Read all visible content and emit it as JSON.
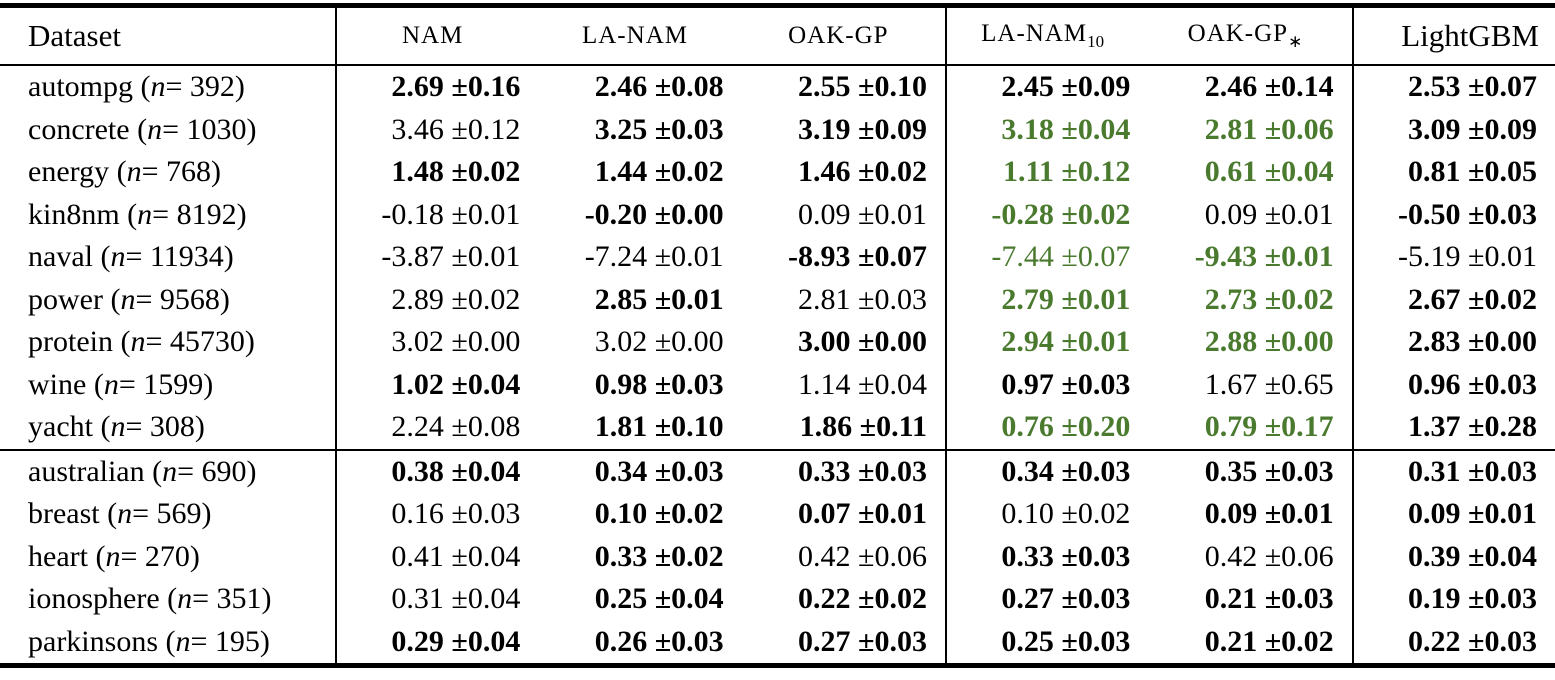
{
  "page": {
    "background": "#ffffff",
    "text_color": "#000000",
    "highlight_color": "#4a7a2e"
  },
  "header": {
    "dataset_label": "Dataset",
    "columns": [
      {
        "label": "NAM",
        "sub": "",
        "style": "smallcaps"
      },
      {
        "label": "LA-NAM",
        "sub": "",
        "style": "smallcaps"
      },
      {
        "label": "OAK-GP",
        "sub": "",
        "style": "smallcaps"
      },
      {
        "label": "LA-NAM",
        "sub": "10",
        "style": "smallcaps"
      },
      {
        "label": "OAK-GP",
        "sub": "∗",
        "style": "smallcaps"
      },
      {
        "label": "LightGBM",
        "sub": "",
        "style": "serif"
      }
    ]
  },
  "sections": [
    {
      "rows": [
        {
          "dataset": "autompg",
          "n": "392",
          "cells": [
            {
              "value": "2.69",
              "err": "0.16",
              "bold": true,
              "green": false
            },
            {
              "value": "2.46",
              "err": "0.08",
              "bold": true,
              "green": false
            },
            {
              "value": "2.55",
              "err": "0.10",
              "bold": true,
              "green": false
            },
            {
              "value": "2.45",
              "err": "0.09",
              "bold": true,
              "green": false
            },
            {
              "value": "2.46",
              "err": "0.14",
              "bold": true,
              "green": false
            },
            {
              "value": "2.53",
              "err": "0.07",
              "bold": true,
              "green": false
            }
          ]
        },
        {
          "dataset": "concrete",
          "n": "1030",
          "cells": [
            {
              "value": "3.46",
              "err": "0.12",
              "bold": false,
              "green": false
            },
            {
              "value": "3.25",
              "err": "0.03",
              "bold": true,
              "green": false
            },
            {
              "value": "3.19",
              "err": "0.09",
              "bold": true,
              "green": false
            },
            {
              "value": "3.18",
              "err": "0.04",
              "bold": true,
              "green": true
            },
            {
              "value": "2.81",
              "err": "0.06",
              "bold": true,
              "green": true
            },
            {
              "value": "3.09",
              "err": "0.09",
              "bold": true,
              "green": false
            }
          ]
        },
        {
          "dataset": "energy",
          "n": "768",
          "cells": [
            {
              "value": "1.48",
              "err": "0.02",
              "bold": true,
              "green": false
            },
            {
              "value": "1.44",
              "err": "0.02",
              "bold": true,
              "green": false
            },
            {
              "value": "1.46",
              "err": "0.02",
              "bold": true,
              "green": false
            },
            {
              "value": "1.11",
              "err": "0.12",
              "bold": true,
              "green": true
            },
            {
              "value": "0.61",
              "err": "0.04",
              "bold": true,
              "green": true
            },
            {
              "value": "0.81",
              "err": "0.05",
              "bold": true,
              "green": false
            }
          ]
        },
        {
          "dataset": "kin8nm",
          "n": "8192",
          "cells": [
            {
              "value": "-0.18",
              "err": "0.01",
              "bold": false,
              "green": false
            },
            {
              "value": "-0.20",
              "err": "0.00",
              "bold": true,
              "green": false
            },
            {
              "value": "0.09",
              "err": "0.01",
              "bold": false,
              "green": false
            },
            {
              "value": "-0.28",
              "err": "0.02",
              "bold": true,
              "green": true
            },
            {
              "value": "0.09",
              "err": "0.01",
              "bold": false,
              "green": false
            },
            {
              "value": "-0.50",
              "err": "0.03",
              "bold": true,
              "green": false
            }
          ]
        },
        {
          "dataset": "naval",
          "n": "11934",
          "cells": [
            {
              "value": "-3.87",
              "err": "0.01",
              "bold": false,
              "green": false
            },
            {
              "value": "-7.24",
              "err": "0.01",
              "bold": false,
              "green": false
            },
            {
              "value": "-8.93",
              "err": "0.07",
              "bold": true,
              "green": false
            },
            {
              "value": "-7.44",
              "err": "0.07",
              "bold": false,
              "green": true
            },
            {
              "value": "-9.43",
              "err": "0.01",
              "bold": true,
              "green": true
            },
            {
              "value": "-5.19",
              "err": "0.01",
              "bold": false,
              "green": false
            }
          ]
        },
        {
          "dataset": "power",
          "n": "9568",
          "cells": [
            {
              "value": "2.89",
              "err": "0.02",
              "bold": false,
              "green": false
            },
            {
              "value": "2.85",
              "err": "0.01",
              "bold": true,
              "green": false
            },
            {
              "value": "2.81",
              "err": "0.03",
              "bold": false,
              "green": false
            },
            {
              "value": "2.79",
              "err": "0.01",
              "bold": true,
              "green": true
            },
            {
              "value": "2.73",
              "err": "0.02",
              "bold": true,
              "green": true
            },
            {
              "value": "2.67",
              "err": "0.02",
              "bold": true,
              "green": false
            }
          ]
        },
        {
          "dataset": "protein",
          "n": "45730",
          "cells": [
            {
              "value": "3.02",
              "err": "0.00",
              "bold": false,
              "green": false
            },
            {
              "value": "3.02",
              "err": "0.00",
              "bold": false,
              "green": false
            },
            {
              "value": "3.00",
              "err": "0.00",
              "bold": true,
              "green": false
            },
            {
              "value": "2.94",
              "err": "0.01",
              "bold": true,
              "green": true
            },
            {
              "value": "2.88",
              "err": "0.00",
              "bold": true,
              "green": true
            },
            {
              "value": "2.83",
              "err": "0.00",
              "bold": true,
              "green": false
            }
          ]
        },
        {
          "dataset": "wine",
          "n": "1599",
          "cells": [
            {
              "value": "1.02",
              "err": "0.04",
              "bold": true,
              "green": false
            },
            {
              "value": "0.98",
              "err": "0.03",
              "bold": true,
              "green": false
            },
            {
              "value": "1.14",
              "err": "0.04",
              "bold": false,
              "green": false
            },
            {
              "value": "0.97",
              "err": "0.03",
              "bold": true,
              "green": false
            },
            {
              "value": "1.67",
              "err": "0.65",
              "bold": false,
              "green": false
            },
            {
              "value": "0.96",
              "err": "0.03",
              "bold": true,
              "green": false
            }
          ]
        },
        {
          "dataset": "yacht",
          "n": "308",
          "cells": [
            {
              "value": "2.24",
              "err": "0.08",
              "bold": false,
              "green": false
            },
            {
              "value": "1.81",
              "err": "0.10",
              "bold": true,
              "green": false
            },
            {
              "value": "1.86",
              "err": "0.11",
              "bold": true,
              "green": false
            },
            {
              "value": "0.76",
              "err": "0.20",
              "bold": true,
              "green": true
            },
            {
              "value": "0.79",
              "err": "0.17",
              "bold": true,
              "green": true
            },
            {
              "value": "1.37",
              "err": "0.28",
              "bold": true,
              "green": false
            }
          ]
        }
      ]
    },
    {
      "rows": [
        {
          "dataset": "australian",
          "n": "690",
          "cells": [
            {
              "value": "0.38",
              "err": "0.04",
              "bold": true,
              "green": false
            },
            {
              "value": "0.34",
              "err": "0.03",
              "bold": true,
              "green": false
            },
            {
              "value": "0.33",
              "err": "0.03",
              "bold": true,
              "green": false
            },
            {
              "value": "0.34",
              "err": "0.03",
              "bold": true,
              "green": false
            },
            {
              "value": "0.35",
              "err": "0.03",
              "bold": true,
              "green": false
            },
            {
              "value": "0.31",
              "err": "0.03",
              "bold": true,
              "green": false
            }
          ]
        },
        {
          "dataset": "breast",
          "n": "569",
          "cells": [
            {
              "value": "0.16",
              "err": "0.03",
              "bold": false,
              "green": false
            },
            {
              "value": "0.10",
              "err": "0.02",
              "bold": true,
              "green": false
            },
            {
              "value": "0.07",
              "err": "0.01",
              "bold": true,
              "green": false
            },
            {
              "value": "0.10",
              "err": "0.02",
              "bold": false,
              "green": false
            },
            {
              "value": "0.09",
              "err": "0.01",
              "bold": true,
              "green": false
            },
            {
              "value": "0.09",
              "err": "0.01",
              "bold": true,
              "green": false
            }
          ]
        },
        {
          "dataset": "heart",
          "n": "270",
          "cells": [
            {
              "value": "0.41",
              "err": "0.04",
              "bold": false,
              "green": false
            },
            {
              "value": "0.33",
              "err": "0.02",
              "bold": true,
              "green": false
            },
            {
              "value": "0.42",
              "err": "0.06",
              "bold": false,
              "green": false
            },
            {
              "value": "0.33",
              "err": "0.03",
              "bold": true,
              "green": false
            },
            {
              "value": "0.42",
              "err": "0.06",
              "bold": false,
              "green": false
            },
            {
              "value": "0.39",
              "err": "0.04",
              "bold": true,
              "green": false
            }
          ]
        },
        {
          "dataset": "ionosphere",
          "n": "351",
          "cells": [
            {
              "value": "0.31",
              "err": "0.04",
              "bold": false,
              "green": false
            },
            {
              "value": "0.25",
              "err": "0.04",
              "bold": true,
              "green": false
            },
            {
              "value": "0.22",
              "err": "0.02",
              "bold": true,
              "green": false
            },
            {
              "value": "0.27",
              "err": "0.03",
              "bold": true,
              "green": false
            },
            {
              "value": "0.21",
              "err": "0.03",
              "bold": true,
              "green": false
            },
            {
              "value": "0.19",
              "err": "0.03",
              "bold": true,
              "green": false
            }
          ]
        },
        {
          "dataset": "parkinsons",
          "n": "195",
          "cells": [
            {
              "value": "0.29",
              "err": "0.04",
              "bold": true,
              "green": false
            },
            {
              "value": "0.26",
              "err": "0.03",
              "bold": true,
              "green": false
            },
            {
              "value": "0.27",
              "err": "0.03",
              "bold": true,
              "green": false
            },
            {
              "value": "0.25",
              "err": "0.03",
              "bold": true,
              "green": false
            },
            {
              "value": "0.21",
              "err": "0.02",
              "bold": true,
              "green": false
            },
            {
              "value": "0.22",
              "err": "0.03",
              "bold": true,
              "green": false
            }
          ]
        }
      ]
    }
  ]
}
